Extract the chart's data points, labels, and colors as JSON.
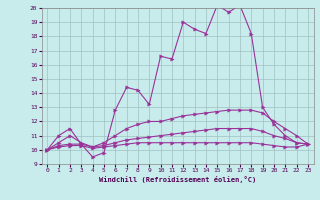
{
  "xlabel": "Windchill (Refroidissement éolien,°C)",
  "bg_color": "#c8ecec",
  "grid_color": "#b0c8c8",
  "line_color": "#993399",
  "xlim": [
    -0.5,
    23.5
  ],
  "ylim": [
    9,
    20
  ],
  "xticks": [
    0,
    1,
    2,
    3,
    4,
    5,
    6,
    7,
    8,
    9,
    10,
    11,
    12,
    13,
    14,
    15,
    16,
    17,
    18,
    19,
    20,
    21,
    22,
    23
  ],
  "yticks": [
    9,
    10,
    11,
    12,
    13,
    14,
    15,
    16,
    17,
    18,
    19,
    20
  ],
  "series": [
    [
      10.0,
      11.0,
      11.5,
      10.4,
      9.5,
      9.8,
      12.8,
      14.4,
      14.2,
      13.2,
      16.6,
      16.4,
      19.0,
      18.5,
      18.2,
      20.2,
      19.7,
      20.2,
      18.2,
      13.0,
      11.8,
      11.0,
      10.5,
      10.4
    ],
    [
      10.0,
      10.5,
      11.0,
      10.5,
      10.2,
      10.5,
      11.0,
      11.5,
      11.8,
      12.0,
      12.0,
      12.2,
      12.4,
      12.5,
      12.6,
      12.7,
      12.8,
      12.8,
      12.8,
      12.6,
      12.0,
      11.5,
      11.0,
      10.4
    ],
    [
      10.0,
      10.3,
      10.4,
      10.4,
      10.2,
      10.3,
      10.5,
      10.7,
      10.8,
      10.9,
      11.0,
      11.1,
      11.2,
      11.3,
      11.4,
      11.5,
      11.5,
      11.5,
      11.5,
      11.3,
      11.0,
      10.8,
      10.5,
      10.4
    ],
    [
      10.0,
      10.2,
      10.3,
      10.3,
      10.1,
      10.2,
      10.3,
      10.4,
      10.5,
      10.5,
      10.5,
      10.5,
      10.5,
      10.5,
      10.5,
      10.5,
      10.5,
      10.5,
      10.5,
      10.4,
      10.3,
      10.2,
      10.2,
      10.4
    ]
  ]
}
